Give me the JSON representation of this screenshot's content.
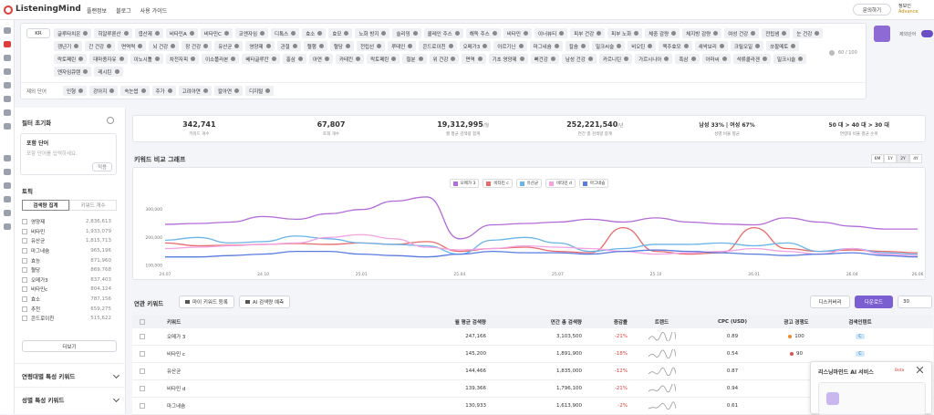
{
  "nav": {
    "logo": "ListeningMind",
    "links": [
      "플랜정보",
      "블로그",
      "사용 가이드"
    ],
    "contact": "문의하기",
    "user": "정보인",
    "plan": "Advance"
  },
  "filter": {
    "country": "KR",
    "keywords": [
      "글루타치온",
      "히알루론산",
      "엽산제",
      "비타민A",
      "비타민C",
      "코엔자임",
      "디톡스",
      "효소",
      "효모",
      "노화 방지",
      "슬리밍",
      "콜레인 주스",
      "해독 주스",
      "비타민",
      "이너뷰티",
      "피부 건강",
      "피부 노화",
      "체중 감량",
      "체지방 감량",
      "여성 건강",
      "전립샘",
      "눈 건강",
      "갱년기",
      "간 건강",
      "면역력",
      "뇌 건강",
      "장 건강",
      "유산균",
      "영양제",
      "관절",
      "혈행",
      "혈당",
      "전립선",
      "루테인",
      "콘드로이친",
      "오메가3",
      "아르기닌",
      "마그네슘",
      "칼슘",
      "밀크씨슬",
      "비오틴",
      "맥주효모",
      "새싹보리",
      "크릴오일",
      "쏘팔메토",
      "락토페린",
      "대마종자유",
      "이노시톨",
      "차전자피",
      "이소플라본",
      "베타글루칸",
      "홍삼",
      "아연",
      "카테킨",
      "락토페린",
      "철분",
      "위 건강",
      "면역",
      "기초 영양제",
      "뼈건강",
      "남성 건강",
      "카르니틴",
      "가르시니아",
      "흑삼",
      "아마씨",
      "석류콜라겐",
      "밀크시슬",
      "엔자임큐텐",
      "레시틴"
    ],
    "count": "60 / 100",
    "exclude_label": "제외 단어",
    "exclude": [
      "인형",
      "강아지",
      "속눈썹",
      "주가",
      "고려아연",
      "칼아연",
      "디지털"
    ],
    "toggle": "제외단어"
  },
  "sidebar": {
    "reset": "필터 초기화",
    "include": {
      "title": "포함 단어",
      "placeholder": "포함 단어를 입력하세요.",
      "apply": "적용"
    },
    "topic": {
      "title": "토픽",
      "tabs": [
        "검색량 집계",
        "키워드 개수"
      ],
      "items": [
        {
          "name": "영양제",
          "value": "2,836,613"
        },
        {
          "name": "비타민",
          "value": "1,933,079"
        },
        {
          "name": "유산균",
          "value": "1,815,713"
        },
        {
          "name": "마그네슘",
          "value": "965,196"
        },
        {
          "name": "효능",
          "value": "871,960"
        },
        {
          "name": "혈당",
          "value": "869,768"
        },
        {
          "name": "오메가3",
          "value": "837,403"
        },
        {
          "name": "비타민c",
          "value": "804,124"
        },
        {
          "name": "효소",
          "value": "787,156"
        },
        {
          "name": "추천",
          "value": "659,275"
        },
        {
          "name": "콘드로이친",
          "value": "515,622"
        }
      ],
      "more": "더보기"
    },
    "sections": [
      "연령대별 특성 키워드",
      "성별 특성 키워드"
    ]
  },
  "stats": [
    {
      "value": "342,741",
      "label": "키워드 개수"
    },
    {
      "value": "67,807",
      "label": "토픽 개수"
    },
    {
      "value": "19,312,995",
      "unit": "/월",
      "label": "월 평균 검색량 합계"
    },
    {
      "value": "252,221,540",
      "unit": "/년",
      "label": "연간 총 검색량 합계"
    },
    {
      "value": "남성 33% | 여성 67%",
      "label": "성별 비율 평균"
    },
    {
      "value": "50 대 > 40 대 > 30 대",
      "label": "연령대 비율 평균 순위"
    }
  ],
  "chart_data": {
    "type": "line",
    "title": "키워드 비교 그래프",
    "periods": [
      "6M",
      "1Y",
      "2Y",
      "4Y"
    ],
    "active_period": 2,
    "categories": [
      "24.07",
      null,
      null,
      "24.10",
      null,
      null,
      "25.01",
      null,
      null,
      "25.04",
      null,
      null,
      "25.07",
      null,
      null,
      "25.10",
      null,
      null,
      "26.01",
      null,
      null,
      "26.04",
      null,
      "26.06"
    ],
    "ylim": [
      80000,
      420000
    ],
    "yticks": [
      {
        "value": 100000,
        "label": "100,000"
      },
      {
        "value": 200000,
        "label": "200,000"
      },
      {
        "value": 300000,
        "label": "300,000"
      }
    ],
    "grid": false,
    "series": [
      {
        "name": "오메가 3",
        "color": "#b36bd8",
        "values": [
          247000,
          250000,
          255000,
          275000,
          265000,
          285000,
          300000,
          330000,
          345000,
          195000,
          245000,
          250000,
          255000,
          265000,
          255000,
          270000,
          255000,
          248000,
          245000,
          270000,
          255000,
          240000,
          230000,
          230000
        ]
      },
      {
        "name": "비타민 c",
        "color": "#e86b6b",
        "values": [
          180000,
          170000,
          172000,
          175000,
          178000,
          175000,
          180000,
          175000,
          185000,
          150000,
          160000,
          165000,
          150000,
          145000,
          235000,
          150000,
          140000,
          145000,
          235000,
          160000,
          150000,
          155000,
          150000,
          145000
        ]
      },
      {
        "name": "유산균",
        "color": "#6ab4e8",
        "values": [
          190000,
          200000,
          180000,
          185000,
          205000,
          195000,
          180000,
          175000,
          170000,
          140000,
          190000,
          200000,
          180000,
          150000,
          160000,
          175000,
          175000,
          180000,
          170000,
          180000,
          150000,
          160000,
          145000,
          140000
        ]
      },
      {
        "name": "비타민 d",
        "color": "#f3a2e2",
        "values": [
          160000,
          165000,
          170000,
          175000,
          180000,
          200000,
          210000,
          195000,
          165000,
          155000,
          160000,
          170000,
          165000,
          160000,
          150000,
          140000,
          145000,
          150000,
          160000,
          150000,
          140000,
          160000,
          140000,
          135000
        ]
      },
      {
        "name": "마그네슘",
        "color": "#5a7be0",
        "values": [
          130000,
          130000,
          135000,
          140000,
          150000,
          150000,
          140000,
          135000,
          130000,
          140000,
          150000,
          145000,
          145000,
          140000,
          150000,
          155000,
          150000,
          145000,
          140000,
          135000,
          140000,
          145000,
          135000,
          130000
        ]
      }
    ]
  },
  "related": {
    "title": "연관 키워드",
    "buttons": [
      "마이 키워드 등록",
      "AI 검색량 예측"
    ],
    "discovery": "디스커버리",
    "download": "다운로드",
    "page_size": "30"
  },
  "table": {
    "headers": [
      "키워드",
      "월 평균 검색량",
      "연간 총 검색량",
      "증감률",
      "트렌드",
      "CPC (USD)",
      "광고 경쟁도",
      "검색인텐트"
    ],
    "rows": [
      {
        "keyword": "오메가 3",
        "monthly": "247,166",
        "annual": "3,103,500",
        "change": "-21%",
        "cpc": "0.89",
        "competition": "100",
        "intent": "C"
      },
      {
        "keyword": "비타민 c",
        "monthly": "145,200",
        "annual": "1,891,900",
        "change": "-18%",
        "cpc": "0.54",
        "competition": "90",
        "intent": "C"
      },
      {
        "keyword": "유산균",
        "monthly": "144,466",
        "annual": "1,835,000",
        "change": "-12%",
        "cpc": "0.87"
      },
      {
        "keyword": "비타민 d",
        "monthly": "139,366",
        "annual": "1,796,100",
        "change": "-21%",
        "cpc": "0.94"
      },
      {
        "keyword": "마그네슘",
        "monthly": "130,933",
        "annual": "1,613,900",
        "change": "-2%",
        "cpc": "0.61"
      }
    ]
  },
  "popup": {
    "title": "리스닝마인드 AI 서비스",
    "badge": "Beta"
  }
}
